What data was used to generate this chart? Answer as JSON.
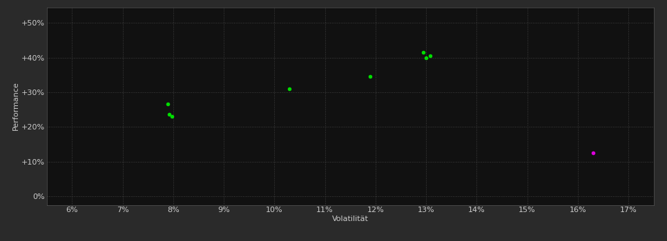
{
  "background_color": "#2a2a2a",
  "plot_bg_color": "#111111",
  "grid_color": "#404040",
  "text_color": "#cccccc",
  "xlabel": "Volatilität",
  "ylabel": "Performance",
  "xlim": [
    0.055,
    0.175
  ],
  "ylim": [
    -0.025,
    0.545
  ],
  "xticks": [
    0.06,
    0.07,
    0.08,
    0.09,
    0.1,
    0.11,
    0.12,
    0.13,
    0.14,
    0.15,
    0.16,
    0.17
  ],
  "yticks": [
    0.0,
    0.1,
    0.2,
    0.3,
    0.4,
    0.5
  ],
  "ytick_labels": [
    "0%",
    "+10%",
    "+20%",
    "+30%",
    "+40%",
    "+50%"
  ],
  "xtick_labels": [
    "6%",
    "7%",
    "8%",
    "9%",
    "10%",
    "11%",
    "12%",
    "13%",
    "14%",
    "15%",
    "16%",
    "17%"
  ],
  "green_points": [
    [
      0.079,
      0.265
    ],
    [
      0.0792,
      0.237
    ],
    [
      0.0798,
      0.231
    ],
    [
      0.103,
      0.31
    ],
    [
      0.119,
      0.346
    ],
    [
      0.1295,
      0.415
    ],
    [
      0.13,
      0.4
    ],
    [
      0.1308,
      0.405
    ]
  ],
  "magenta_points": [
    [
      0.163,
      0.125
    ]
  ],
  "green_color": "#00dd00",
  "magenta_color": "#dd00dd",
  "marker_size": 4
}
